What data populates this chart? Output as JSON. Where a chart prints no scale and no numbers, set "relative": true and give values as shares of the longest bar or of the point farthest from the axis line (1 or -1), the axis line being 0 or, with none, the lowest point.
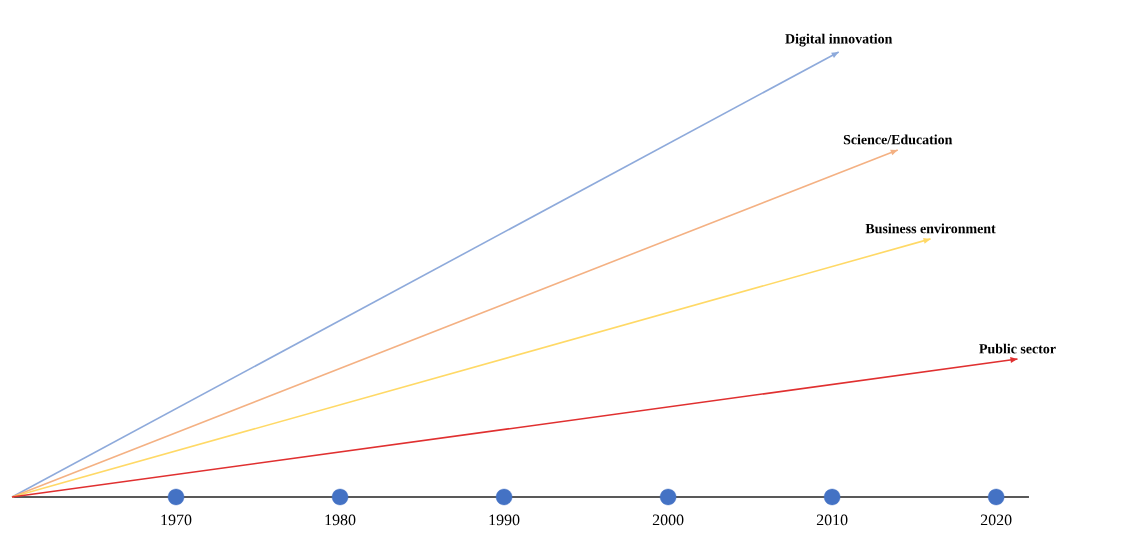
{
  "chart_data": {
    "type": "line",
    "relative": true,
    "xlim": [
      1960,
      2022
    ],
    "xticks": [
      1970,
      1980,
      1990,
      2000,
      2010,
      2020
    ],
    "grid": false,
    "line_style": "solid",
    "series": [
      {
        "name": "Digital innovation",
        "color": "#8eaadb",
        "x": [
          1960,
          2010.4
        ],
        "values": [
          0,
          1
        ]
      },
      {
        "name": "Science/Education",
        "color": "#f4b183",
        "x": [
          1960,
          2014
        ],
        "values": [
          0,
          0.78
        ]
      },
      {
        "name": "Business environment",
        "color": "#ffd966",
        "x": [
          1960,
          2016
        ],
        "values": [
          0,
          0.58
        ]
      },
      {
        "name": "Public sector",
        "color": "#e03030",
        "x": [
          1960,
          2021.3
        ],
        "values": [
          0,
          0.31
        ]
      },
      {
        "type": "scatter",
        "marker": "circle",
        "color": "#4472c4",
        "x": [
          1970,
          1980,
          1990,
          2000,
          2010,
          2020
        ],
        "values": [
          0,
          0,
          0,
          0,
          0,
          0
        ]
      }
    ]
  }
}
